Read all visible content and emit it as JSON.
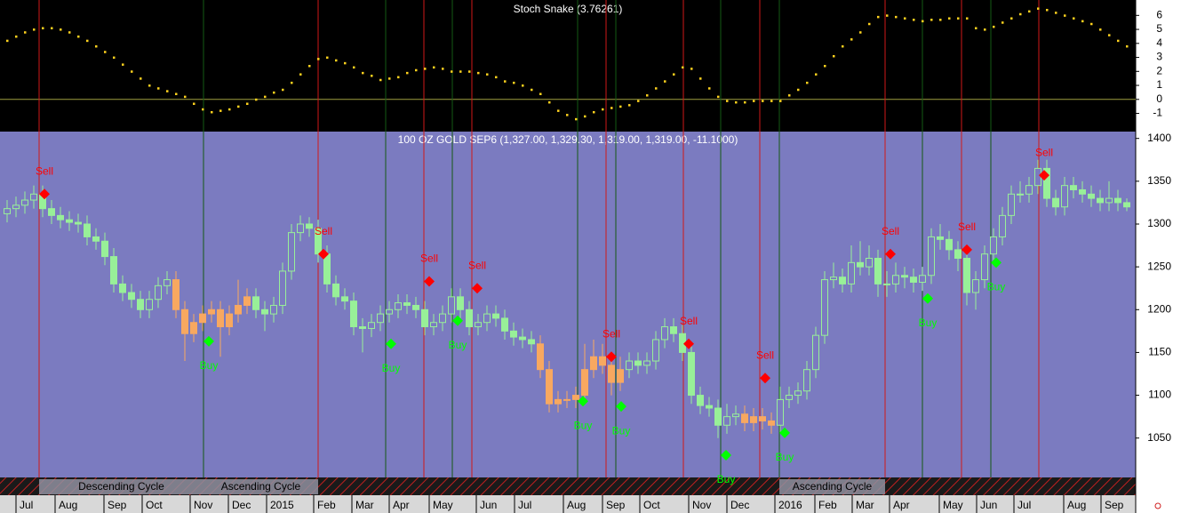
{
  "chart_data": [
    {
      "type": "dots",
      "title": "Stoch Snake (3.76261)",
      "color": "#ffd21e",
      "values": [
        4.2,
        4.5,
        4.8,
        5.0,
        5.1,
        5.1,
        5.0,
        4.8,
        4.5,
        4.2,
        3.8,
        3.4,
        3.0,
        2.5,
        2.0,
        1.5,
        1.0,
        0.8,
        0.6,
        0.4,
        0.2,
        -0.3,
        -0.7,
        -0.9,
        -0.8,
        -0.7,
        -0.5,
        -0.3,
        0.0,
        0.2,
        0.5,
        0.7,
        1.2,
        1.8,
        2.4,
        2.9,
        3.0,
        2.8,
        2.6,
        2.3,
        1.9,
        1.7,
        1.4,
        1.5,
        1.6,
        1.9,
        2.1,
        2.2,
        2.3,
        2.2,
        2.0,
        2.0,
        2.0,
        1.9,
        1.8,
        1.6,
        1.3,
        1.2,
        1.0,
        0.7,
        0.4,
        -0.2,
        -0.8,
        -1.1,
        -1.4,
        -1.2,
        -0.9,
        -0.7,
        -0.6,
        -0.5,
        -0.4,
        -0.1,
        0.3,
        0.8,
        1.3,
        1.8,
        2.3,
        2.2,
        1.5,
        0.8,
        0.2,
        -0.1,
        -0.2,
        -0.2,
        -0.1,
        -0.1,
        -0.1,
        -0.1,
        0.3,
        0.7,
        1.2,
        1.8,
        2.4,
        3.1,
        3.8,
        4.3,
        4.8,
        5.4,
        5.9,
        6.0,
        5.9,
        5.8,
        5.7,
        5.6,
        5.7,
        5.7,
        5.8,
        5.8,
        5.8,
        5.1,
        5.0,
        5.2,
        5.5,
        5.8,
        6.1,
        6.3,
        6.5,
        6.4,
        6.2,
        6.0,
        5.8,
        5.6,
        5.4,
        5.0,
        4.6,
        4.2,
        3.8
      ],
      "ylim": [
        -2.3,
        7.1
      ],
      "yticks": [
        -1,
        0,
        1,
        2,
        3,
        4,
        5,
        6
      ],
      "reference_line": 0,
      "reference_color": "#a0a040"
    },
    {
      "type": "candlestick",
      "title": "100 OZ GOLD SEP6 (1,327.00, 1,329.30, 1,319.00, 1,319.00, -11.1000)",
      "color": "#98f098",
      "highlight_color": "#f8a860",
      "highlight_ranges": [
        [
          19,
          27
        ],
        [
          60,
          69
        ],
        [
          83,
          86
        ]
      ],
      "open": [
        1312,
        1318,
        1322,
        1328,
        1335,
        1318,
        1310,
        1305,
        1302,
        1300,
        1285,
        1280,
        1262,
        1230,
        1220,
        1212,
        1200,
        1212,
        1228,
        1235,
        1200,
        1172,
        1185,
        1195,
        1200,
        1180,
        1195,
        1205,
        1215,
        1200,
        1195,
        1205,
        1245,
        1290,
        1300,
        1295,
        1265,
        1230,
        1215,
        1210,
        1180,
        1178,
        1185,
        1195,
        1200,
        1208,
        1205,
        1200,
        1180,
        1185,
        1195,
        1215,
        1200,
        1180,
        1185,
        1195,
        1190,
        1175,
        1168,
        1165,
        1160,
        1130,
        1090,
        1095,
        1095,
        1100,
        1130,
        1145,
        1135,
        1115,
        1130,
        1140,
        1135,
        1140,
        1165,
        1180,
        1172,
        1150,
        1100,
        1088,
        1085,
        1065,
        1075,
        1078,
        1068,
        1075,
        1070,
        1065,
        1095,
        1100,
        1105,
        1130,
        1170,
        1235,
        1238,
        1230,
        1255,
        1250,
        1260,
        1230,
        1230,
        1240,
        1238,
        1232,
        1240,
        1285,
        1282,
        1270,
        1260,
        1220,
        1235,
        1265,
        1285,
        1310,
        1335,
        1335,
        1345,
        1365,
        1330,
        1320,
        1345,
        1340,
        1335,
        1330,
        1325,
        1330,
        1325
      ],
      "high": [
        1328,
        1332,
        1338,
        1345,
        1345,
        1328,
        1320,
        1315,
        1312,
        1310,
        1295,
        1290,
        1272,
        1240,
        1230,
        1222,
        1222,
        1238,
        1245,
        1245,
        1210,
        1195,
        1205,
        1210,
        1210,
        1205,
        1235,
        1225,
        1225,
        1210,
        1215,
        1255,
        1300,
        1310,
        1308,
        1305,
        1275,
        1240,
        1225,
        1220,
        1190,
        1195,
        1205,
        1210,
        1218,
        1218,
        1215,
        1210,
        1195,
        1205,
        1225,
        1225,
        1210,
        1195,
        1205,
        1205,
        1200,
        1185,
        1178,
        1175,
        1170,
        1140,
        1105,
        1105,
        1110,
        1160,
        1165,
        1160,
        1145,
        1145,
        1150,
        1150,
        1150,
        1175,
        1190,
        1190,
        1182,
        1160,
        1110,
        1098,
        1095,
        1090,
        1088,
        1088,
        1085,
        1085,
        1080,
        1110,
        1110,
        1115,
        1140,
        1180,
        1245,
        1255,
        1248,
        1275,
        1280,
        1275,
        1270,
        1245,
        1255,
        1250,
        1248,
        1250,
        1295,
        1300,
        1292,
        1280,
        1270,
        1245,
        1275,
        1295,
        1320,
        1345,
        1350,
        1355,
        1375,
        1375,
        1340,
        1355,
        1355,
        1350,
        1345,
        1340,
        1350,
        1340,
        1330
      ],
      "low": [
        1302,
        1308,
        1312,
        1318,
        1308,
        1300,
        1295,
        1292,
        1290,
        1275,
        1270,
        1252,
        1220,
        1210,
        1202,
        1190,
        1190,
        1202,
        1218,
        1190,
        1140,
        1162,
        1175,
        1185,
        1145,
        1170,
        1185,
        1195,
        1190,
        1175,
        1185,
        1195,
        1235,
        1280,
        1285,
        1255,
        1220,
        1205,
        1200,
        1170,
        1150,
        1168,
        1175,
        1185,
        1190,
        1195,
        1190,
        1170,
        1170,
        1175,
        1185,
        1190,
        1170,
        1170,
        1175,
        1180,
        1165,
        1158,
        1155,
        1150,
        1120,
        1080,
        1080,
        1085,
        1085,
        1090,
        1120,
        1125,
        1100,
        1105,
        1120,
        1125,
        1125,
        1130,
        1155,
        1162,
        1140,
        1090,
        1078,
        1075,
        1050,
        1055,
        1065,
        1058,
        1058,
        1060,
        1055,
        1055,
        1085,
        1090,
        1095,
        1120,
        1160,
        1225,
        1220,
        1220,
        1240,
        1240,
        1215,
        1215,
        1220,
        1225,
        1220,
        1222,
        1230,
        1270,
        1258,
        1245,
        1205,
        1200,
        1225,
        1255,
        1275,
        1300,
        1325,
        1325,
        1335,
        1320,
        1310,
        1310,
        1330,
        1325,
        1320,
        1315,
        1315,
        1315,
        1315
      ],
      "close": [
        1318,
        1322,
        1328,
        1335,
        1318,
        1310,
        1305,
        1302,
        1300,
        1285,
        1280,
        1262,
        1230,
        1220,
        1212,
        1200,
        1212,
        1228,
        1235,
        1200,
        1172,
        1185,
        1195,
        1200,
        1180,
        1195,
        1205,
        1215,
        1200,
        1195,
        1205,
        1245,
        1290,
        1300,
        1295,
        1265,
        1230,
        1215,
        1210,
        1180,
        1178,
        1185,
        1195,
        1200,
        1208,
        1205,
        1200,
        1180,
        1185,
        1195,
        1215,
        1200,
        1180,
        1185,
        1195,
        1190,
        1175,
        1168,
        1165,
        1160,
        1130,
        1090,
        1095,
        1095,
        1100,
        1130,
        1145,
        1135,
        1115,
        1130,
        1140,
        1135,
        1140,
        1165,
        1180,
        1172,
        1150,
        1100,
        1088,
        1085,
        1065,
        1075,
        1078,
        1068,
        1075,
        1070,
        1065,
        1095,
        1100,
        1105,
        1130,
        1170,
        1235,
        1238,
        1230,
        1255,
        1250,
        1260,
        1230,
        1230,
        1240,
        1238,
        1232,
        1240,
        1285,
        1282,
        1270,
        1260,
        1220,
        1235,
        1265,
        1285,
        1310,
        1335,
        1335,
        1345,
        1365,
        1330,
        1320,
        1345,
        1340,
        1335,
        1330,
        1325,
        1330,
        1325,
        1320
      ],
      "signals": [
        {
          "name": "Sell",
          "color": "#ff0000",
          "line_color": "#d01818",
          "x": [
            3.6,
            35,
            46.9,
            52.3,
            67.4,
            76.1,
            84.7,
            98.8,
            107.4,
            116.1
          ],
          "values": [
            1335,
            1265,
            1233,
            1225,
            1145,
            1160,
            1120,
            1265,
            1270,
            1357
          ]
        },
        {
          "name": "Buy",
          "color": "#00ff00",
          "line_color": "#145a14",
          "x": [
            22.1,
            42.6,
            50.1,
            64.2,
            68.5,
            80.3,
            86.9,
            103,
            110.7
          ],
          "values": [
            1163,
            1160,
            1187,
            1093,
            1087,
            1030,
            1056,
            1213,
            1255
          ]
        }
      ],
      "cycles": [
        {
          "label": "Descending Cycle",
          "x": [
            3.6,
            22.1
          ]
        },
        {
          "label": "Ascending Cycle",
          "x": [
            22.1,
            35
          ]
        },
        {
          "label": "Ascending Cycle",
          "x": [
            86.9,
            98.8
          ]
        }
      ],
      "ylim": [
        1004,
        1408
      ],
      "yticks": [
        1050,
        1100,
        1150,
        1200,
        1250,
        1300,
        1350,
        1400
      ],
      "xlim": [
        -0.8,
        127
      ],
      "xticks": [
        {
          "value": 1.0,
          "label": "Jul"
        },
        {
          "value": 5.4,
          "label": "Aug"
        },
        {
          "value": 10.9,
          "label": "Sep"
        },
        {
          "value": 15.2,
          "label": "Oct"
        },
        {
          "value": 20.6,
          "label": "Nov"
        },
        {
          "value": 24.9,
          "label": "Dec"
        },
        {
          "value": 29.2,
          "label": "2015"
        },
        {
          "value": 34.5,
          "label": "Feb"
        },
        {
          "value": 38.8,
          "label": "Mar"
        },
        {
          "value": 43,
          "label": "Apr"
        },
        {
          "value": 47.5,
          "label": "May"
        },
        {
          "value": 52.8,
          "label": "Jun"
        },
        {
          "value": 57.1,
          "label": "Jul"
        },
        {
          "value": 62.6,
          "label": "Aug"
        },
        {
          "value": 67,
          "label": "Sep"
        },
        {
          "value": 71.2,
          "label": "Oct"
        },
        {
          "value": 76.7,
          "label": "Nov"
        },
        {
          "value": 81,
          "label": "Dec"
        },
        {
          "value": 86.4,
          "label": "2016"
        },
        {
          "value": 90.9,
          "label": "Feb"
        },
        {
          "value": 95.1,
          "label": "Mar"
        },
        {
          "value": 99.3,
          "label": "Apr"
        },
        {
          "value": 104.9,
          "label": "May"
        },
        {
          "value": 109.1,
          "label": "Jun"
        },
        {
          "value": 113.3,
          "label": "Jul"
        },
        {
          "value": 118.9,
          "label": "Aug"
        },
        {
          "value": 123.1,
          "label": "Sep"
        }
      ]
    }
  ]
}
